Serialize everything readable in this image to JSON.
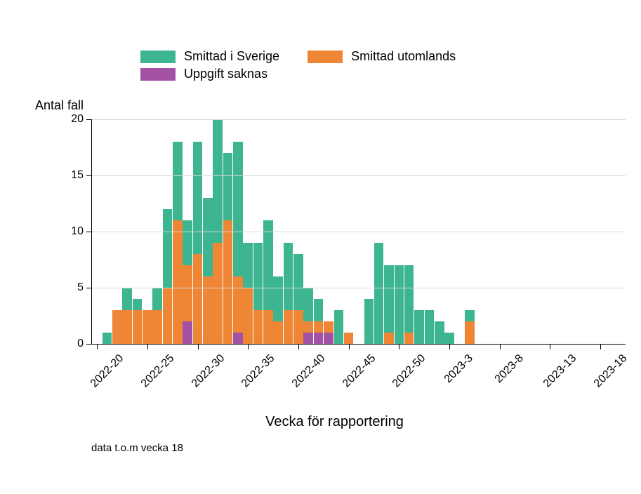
{
  "chart": {
    "type": "stacked-bar",
    "y_axis_title": "Antal fall",
    "x_axis_title": "Vecka för rapportering",
    "footnote": "data t.o.m vecka 18",
    "background_color": "#ffffff",
    "grid_color": "#d8d8d8",
    "axis_color": "#000000",
    "title_fontsize": 18,
    "label_fontsize": 16,
    "legend": [
      {
        "label": "Smittad i Sverige",
        "color": "#3db591"
      },
      {
        "label": "Smittad utomlands",
        "color": "#ee8636"
      },
      {
        "label": "Uppgift saknas",
        "color": "#a251a5"
      }
    ],
    "ylim": [
      0,
      20
    ],
    "ytick_step": 5,
    "y_ticks": [
      0,
      5,
      10,
      15,
      20
    ],
    "x_domain_weeks": {
      "start": 20,
      "end": 72
    },
    "x_tick_labels": [
      {
        "week": 20,
        "label": "2022-20"
      },
      {
        "week": 25,
        "label": "2022-25"
      },
      {
        "week": 30,
        "label": "2022-30"
      },
      {
        "week": 35,
        "label": "2022-35"
      },
      {
        "week": 40,
        "label": "2022-40"
      },
      {
        "week": 45,
        "label": "2022-45"
      },
      {
        "week": 50,
        "label": "2022-50"
      },
      {
        "week": 55,
        "label": "2023-3"
      },
      {
        "week": 60,
        "label": "2023-8"
      },
      {
        "week": 65,
        "label": "2023-13"
      },
      {
        "week": 70,
        "label": "2023-18"
      }
    ],
    "series_order": [
      "saknas",
      "utomlands",
      "sverige"
    ],
    "colors": {
      "sverige": "#3db591",
      "utomlands": "#ee8636",
      "saknas": "#a251a5"
    },
    "data": [
      {
        "week": 21,
        "sverige": 1,
        "utomlands": 0,
        "saknas": 0
      },
      {
        "week": 22,
        "sverige": 0,
        "utomlands": 3,
        "saknas": 0
      },
      {
        "week": 23,
        "sverige": 2,
        "utomlands": 3,
        "saknas": 0
      },
      {
        "week": 24,
        "sverige": 1,
        "utomlands": 3,
        "saknas": 0
      },
      {
        "week": 25,
        "sverige": 0,
        "utomlands": 3,
        "saknas": 0
      },
      {
        "week": 26,
        "sverige": 2,
        "utomlands": 3,
        "saknas": 0
      },
      {
        "week": 27,
        "sverige": 7,
        "utomlands": 5,
        "saknas": 0
      },
      {
        "week": 28,
        "sverige": 7,
        "utomlands": 11,
        "saknas": 0
      },
      {
        "week": 29,
        "sverige": 4,
        "utomlands": 5,
        "saknas": 2
      },
      {
        "week": 30,
        "sverige": 10,
        "utomlands": 8,
        "saknas": 0
      },
      {
        "week": 31,
        "sverige": 7,
        "utomlands": 6,
        "saknas": 0
      },
      {
        "week": 32,
        "sverige": 11,
        "utomlands": 9,
        "saknas": 0
      },
      {
        "week": 33,
        "sverige": 6,
        "utomlands": 11,
        "saknas": 0
      },
      {
        "week": 34,
        "sverige": 12,
        "utomlands": 5,
        "saknas": 1
      },
      {
        "week": 35,
        "sverige": 4,
        "utomlands": 5,
        "saknas": 0
      },
      {
        "week": 36,
        "sverige": 6,
        "utomlands": 3,
        "saknas": 0
      },
      {
        "week": 37,
        "sverige": 8,
        "utomlands": 3,
        "saknas": 0
      },
      {
        "week": 38,
        "sverige": 4,
        "utomlands": 2,
        "saknas": 0
      },
      {
        "week": 39,
        "sverige": 6,
        "utomlands": 3,
        "saknas": 0
      },
      {
        "week": 40,
        "sverige": 5,
        "utomlands": 3,
        "saknas": 0
      },
      {
        "week": 41,
        "sverige": 3,
        "utomlands": 1,
        "saknas": 1
      },
      {
        "week": 42,
        "sverige": 2,
        "utomlands": 1,
        "saknas": 1
      },
      {
        "week": 43,
        "sverige": 0,
        "utomlands": 1,
        "saknas": 1
      },
      {
        "week": 44,
        "sverige": 3,
        "utomlands": 0,
        "saknas": 0
      },
      {
        "week": 45,
        "sverige": 0,
        "utomlands": 1,
        "saknas": 0
      },
      {
        "week": 47,
        "sverige": 4,
        "utomlands": 0,
        "saknas": 0
      },
      {
        "week": 48,
        "sverige": 9,
        "utomlands": 0,
        "saknas": 0
      },
      {
        "week": 49,
        "sverige": 6,
        "utomlands": 1,
        "saknas": 0
      },
      {
        "week": 50,
        "sverige": 7,
        "utomlands": 0,
        "saknas": 0
      },
      {
        "week": 51,
        "sverige": 6,
        "utomlands": 1,
        "saknas": 0
      },
      {
        "week": 52,
        "sverige": 3,
        "utomlands": 0,
        "saknas": 0
      },
      {
        "week": 53,
        "sverige": 3,
        "utomlands": 0,
        "saknas": 0
      },
      {
        "week": 54,
        "sverige": 2,
        "utomlands": 0,
        "saknas": 0
      },
      {
        "week": 55,
        "sverige": 1,
        "utomlands": 0,
        "saknas": 0
      },
      {
        "week": 57,
        "sverige": 1,
        "utomlands": 2,
        "saknas": 0
      }
    ]
  }
}
